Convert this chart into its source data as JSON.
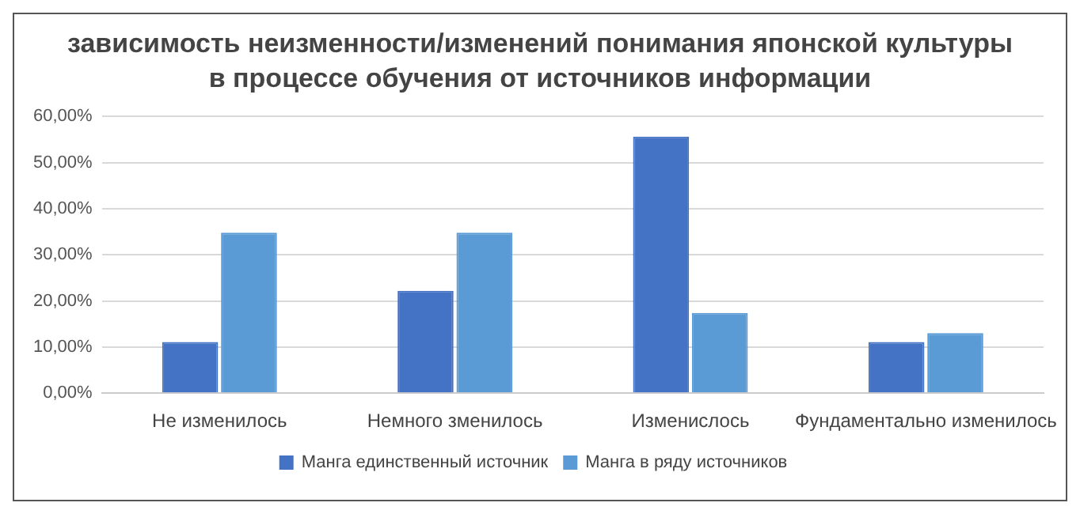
{
  "chart_data": {
    "type": "bar",
    "title": "зависимость неизменности/изменений понимания японской культуры в процессе обучения от источников информации",
    "categories": [
      "Не изменилось",
      "Немного зменилось",
      "Изменислось",
      "Фундаментально изменилось"
    ],
    "series": [
      {
        "name": "Манга единственный источник",
        "color": "#4472c4",
        "values": [
          11.1,
          22.2,
          55.6,
          11.1
        ]
      },
      {
        "name": "Манга в ряду источников",
        "color": "#5b9bd5",
        "values": [
          34.8,
          34.8,
          17.4,
          13.0
        ]
      }
    ],
    "ylim": [
      0,
      60
    ],
    "yticks": [
      {
        "value": 0,
        "label": "0,00%"
      },
      {
        "value": 10,
        "label": "10,00%"
      },
      {
        "value": 20,
        "label": "20,00%"
      },
      {
        "value": 30,
        "label": "30,00%"
      },
      {
        "value": 40,
        "label": "40,00%"
      },
      {
        "value": 50,
        "label": "50,00%"
      },
      {
        "value": 60,
        "label": "60,00%"
      }
    ],
    "grid": "y",
    "legend": "bottom"
  }
}
